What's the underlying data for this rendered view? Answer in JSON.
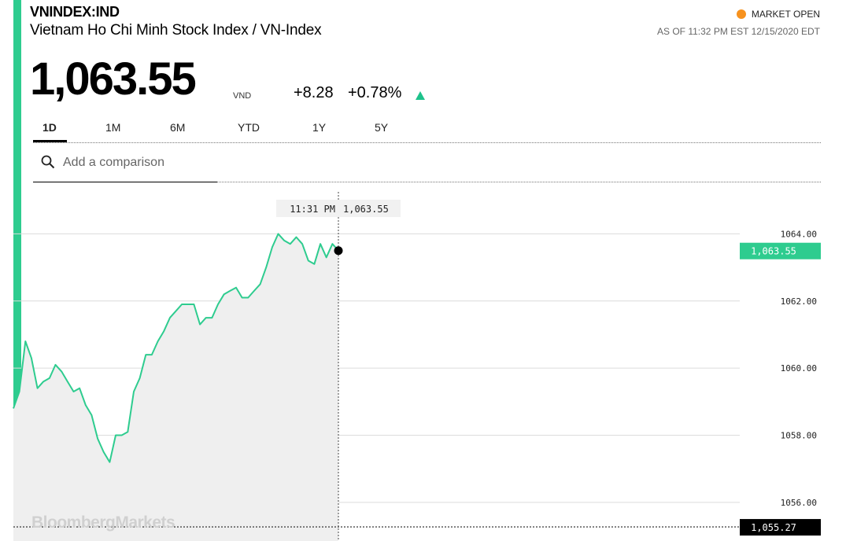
{
  "header": {
    "ticker": "VNINDEX:IND",
    "name": "Vietnam Ho Chi Minh Stock Index / VN-Index",
    "market_status": "MARKET OPEN",
    "as_of": "AS OF 11:32 PM EST 12/15/2020 EDT"
  },
  "quote": {
    "price": "1,063.55",
    "currency": "VND",
    "change": "+8.28",
    "change_pct": "+0.78%"
  },
  "tabs": [
    {
      "label": "1D",
      "active": true
    },
    {
      "label": "1M",
      "active": false
    },
    {
      "label": "6M",
      "active": false
    },
    {
      "label": "YTD",
      "active": false
    },
    {
      "label": "1Y",
      "active": false
    },
    {
      "label": "5Y",
      "active": false
    }
  ],
  "search": {
    "placeholder": "Add a comparison"
  },
  "colors": {
    "accent": "#2ecc8f",
    "line": "#2ecc8f",
    "status_dot": "#f7921e",
    "up": "#1ec28b",
    "tag_dark": "#000000"
  },
  "chart_data": {
    "type": "line",
    "y_ticks": [
      "1064.00",
      "1062.00",
      "1060.00",
      "1058.00",
      "1056.00"
    ],
    "y_tick_values": [
      1064,
      1062,
      1060,
      1058,
      1056
    ],
    "ylim": [
      1054.85,
      1065.25
    ],
    "grid": true,
    "series": [
      {
        "values": [
          1058.8,
          1059.3,
          1060.8,
          1060.3,
          1059.4,
          1059.6,
          1059.7,
          1060.1,
          1059.9,
          1059.6,
          1059.3,
          1059.4,
          1058.9,
          1058.6,
          1057.9,
          1057.5,
          1057.2,
          1058.0,
          1058.0,
          1058.1,
          1059.3,
          1059.7,
          1060.4,
          1060.4,
          1060.8,
          1061.1,
          1061.5,
          1061.7,
          1061.9,
          1061.9,
          1061.9,
          1061.3,
          1061.5,
          1061.5,
          1061.9,
          1062.2,
          1062.3,
          1062.4,
          1062.1,
          1062.1,
          1062.3,
          1062.5,
          1063.0,
          1063.6,
          1064.0,
          1063.8,
          1063.7,
          1063.9,
          1063.7,
          1063.2,
          1063.1,
          1063.7,
          1063.3,
          1063.7,
          1063.5
        ]
      }
    ],
    "crosshair": {
      "time": "11:31 PM",
      "value": "1,063.55"
    },
    "last_value_tag": "1,063.55",
    "prev_close_tag": "1,055.27",
    "prev_close_value": 1055.27
  },
  "branding": {
    "watermark": "BloombergMarkets"
  }
}
